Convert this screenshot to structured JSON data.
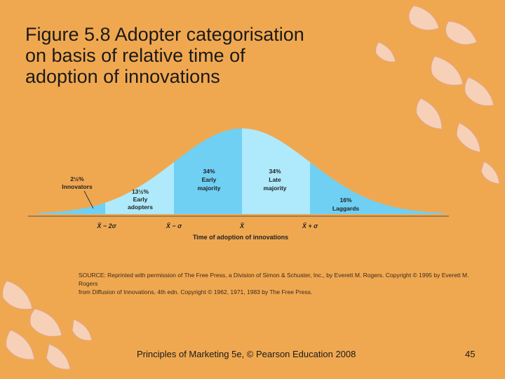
{
  "title_lines": [
    "Figure 5.8 Adopter categorisation",
    "on basis of relative time of",
    "adoption of innovations"
  ],
  "diagram": {
    "segments": [
      {
        "percent": "2½%",
        "label": "Innovators"
      },
      {
        "percent": "13½%",
        "label_lines": [
          "Early",
          "adopters"
        ]
      },
      {
        "percent": "34%",
        "label_lines": [
          "Early",
          "majority"
        ]
      },
      {
        "percent": "34%",
        "label_lines": [
          "Late",
          "majority"
        ]
      },
      {
        "percent": "16%",
        "label": "Laggards"
      }
    ],
    "axis_ticks": [
      "X̄ − 2σ",
      "X̄ − σ",
      "X̄",
      "X̄ + σ"
    ],
    "axis_label": "Time of adoption of innovations",
    "colors": {
      "dark": "#6fd0f4",
      "light": "#aeeafc"
    }
  },
  "source_lines": [
    "SOURCE: Reprinted with permission of The Free Press, a Division of Simon & Schuster, Inc., by Everett M. Rogers. Copyright © 1995 by Everett M. Rogers",
    "from Diffusion of Innovations, 4th edn. Copyright © 1962, 1971, 1983 by The Free Press."
  ],
  "footer": "Principles of Marketing 5e, © Pearson Education 2008",
  "page_number": "45"
}
